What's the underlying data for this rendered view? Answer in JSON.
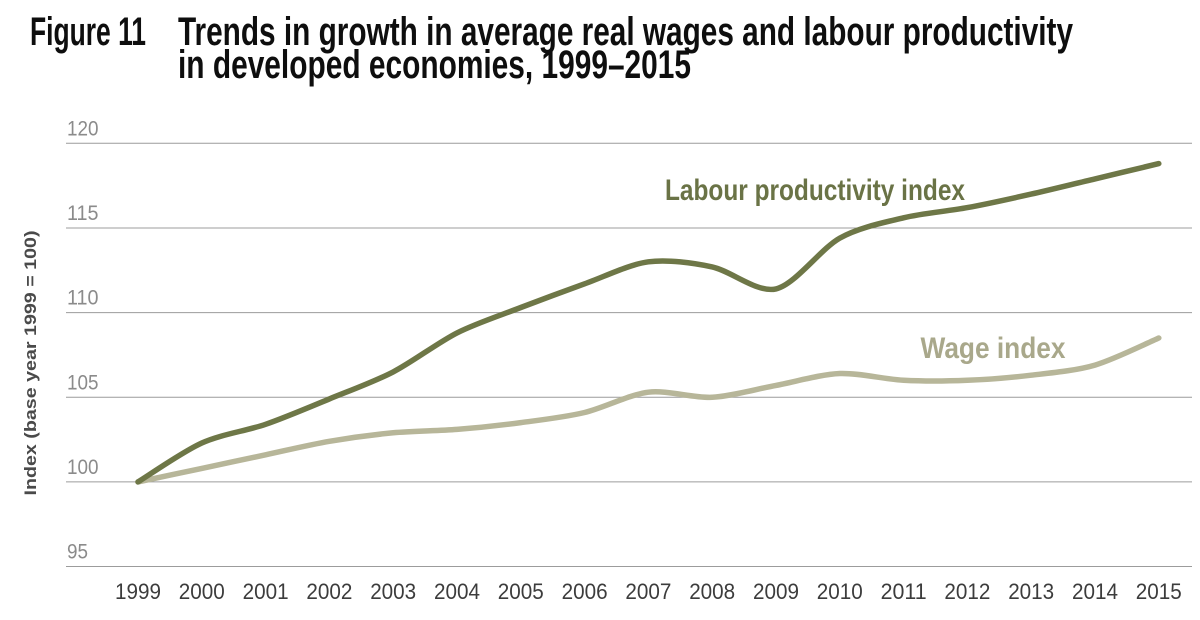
{
  "header": {
    "figure_label": "Figure 11",
    "title_line1": "Trends in growth in average real wages and labour productivity",
    "title_line2": "in developed economies, 1999–2015"
  },
  "chart_data": {
    "type": "line",
    "title": "Figure 11. Trends in growth in average real wages and labour productivity in developed economies, 1999–2015",
    "xlabel": "",
    "ylabel": "Index (base year 1999 = 100)",
    "x": [
      1999,
      2000,
      2001,
      2002,
      2003,
      2004,
      2005,
      2006,
      2007,
      2008,
      2009,
      2010,
      2011,
      2012,
      2013,
      2014,
      2015
    ],
    "series": [
      {
        "name": "Labour productivity index",
        "color": "#6e7747",
        "label_color": "#6a7346",
        "values": [
          100,
          102.3,
          103.4,
          104.9,
          106.5,
          108.8,
          110.3,
          111.7,
          113.0,
          112.7,
          111.4,
          114.4,
          115.6,
          116.2,
          117.0,
          117.9,
          118.8
        ]
      },
      {
        "name": "Wage index",
        "color": "#b7b699",
        "label_color": "#a9a88b",
        "values": [
          100,
          100.8,
          101.6,
          102.4,
          102.9,
          103.1,
          103.5,
          104.1,
          105.3,
          105.0,
          105.7,
          106.4,
          106.0,
          106.0,
          106.3,
          106.9,
          108.5
        ]
      }
    ],
    "ylim": [
      95,
      120
    ],
    "yticks": [
      95,
      100,
      105,
      110,
      115,
      120
    ],
    "grid": true,
    "legend_position": "inline-labels",
    "styles": {
      "gridline_color": "#9c9c9c",
      "ytick_color": "#8b8b8b",
      "xtick_color": "#3c3c3c",
      "ylabel_color": "#4a4a4a",
      "title_color": "#0e0e0e",
      "background": "#ffffff"
    }
  }
}
